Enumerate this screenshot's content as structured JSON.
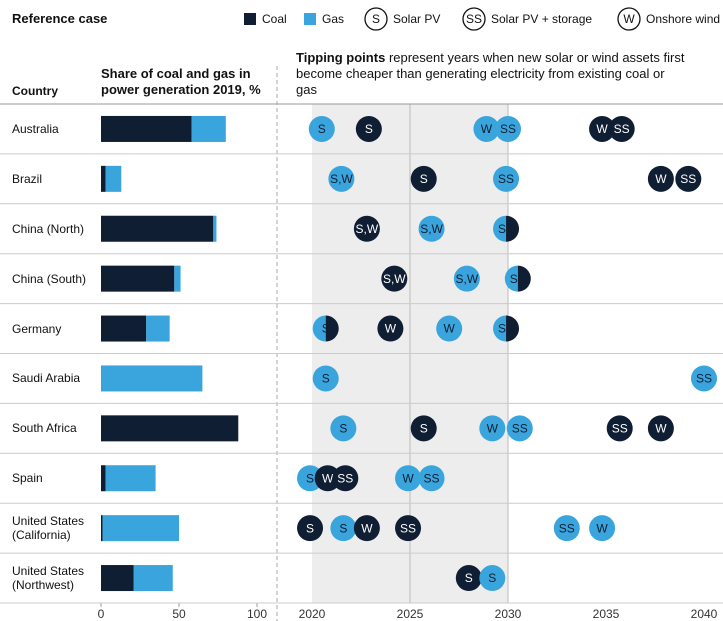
{
  "header": {
    "title": "Reference case",
    "column": "Country"
  },
  "legend": {
    "symbols": [
      {
        "symbol": "S",
        "label": "Solar PV"
      },
      {
        "symbol": "SS",
        "label": "Solar PV + storage"
      },
      {
        "symbol": "W",
        "label": "Onshore wind"
      }
    ]
  },
  "chart_data": [
    {
      "type": "bar",
      "stacked": true,
      "orientation": "horizontal",
      "title": "Share of coal and gas in power generation 2019, %",
      "categories": [
        "Australia",
        "Brazil",
        "China (North)",
        "China (South)",
        "Germany",
        "Saudi Arabia",
        "South Africa",
        "Spain",
        "United States (California)",
        "United States (Northwest)"
      ],
      "series": [
        {
          "name": "Coal",
          "color": "#0f1e33",
          "values": [
            58,
            3,
            72,
            47,
            29,
            0,
            88,
            3,
            1,
            21
          ]
        },
        {
          "name": "Gas",
          "color": "#3aa4dc",
          "values": [
            22,
            10,
            2,
            4,
            15,
            65,
            0,
            32,
            49,
            25
          ]
        }
      ],
      "xlim": [
        0,
        100
      ],
      "xticks": [
        0,
        50,
        100
      ]
    },
    {
      "type": "dot",
      "title_bold": "Tipping points",
      "title": "represent years when new solar or wind assets first become cheaper than generating electricity from existing coal or gas",
      "xlim": [
        2020,
        2040
      ],
      "xticks": [
        2020,
        2025,
        2030,
        2035,
        2040
      ],
      "shaded_range": [
        2020,
        2030
      ],
      "points": [
        [
          {
            "x": 2020.5,
            "label": "S",
            "fuel": "Gas"
          },
          {
            "x": 2022.9,
            "label": "S",
            "fuel": "Coal"
          },
          {
            "x": 2028.9,
            "label": "W",
            "fuel": "Gas"
          },
          {
            "x": 2030.0,
            "label": "SS",
            "fuel": "Gas"
          },
          {
            "x": 2034.8,
            "label": "W",
            "fuel": "Coal"
          },
          {
            "x": 2035.8,
            "label": "SS",
            "fuel": "Coal"
          }
        ],
        [
          {
            "x": 2021.5,
            "label": "S,W",
            "fuel": "Gas"
          },
          {
            "x": 2025.7,
            "label": "S",
            "fuel": "Coal"
          },
          {
            "x": 2029.9,
            "label": "SS",
            "fuel": "Gas"
          },
          {
            "x": 2037.8,
            "label": "W",
            "fuel": "Coal"
          },
          {
            "x": 2039.2,
            "label": "SS",
            "fuel": "Coal"
          }
        ],
        [
          {
            "x": 2022.8,
            "label": "S,W",
            "fuel": "Coal"
          },
          {
            "x": 2026.1,
            "label": "S,W",
            "fuel": "Gas"
          },
          {
            "x": 2029.9,
            "label": "SS",
            "fuel": [
              "Gas",
              "Coal"
            ]
          }
        ],
        [
          {
            "x": 2024.2,
            "label": "S,W",
            "fuel": "Coal"
          },
          {
            "x": 2027.9,
            "label": "S,W",
            "fuel": "Gas"
          },
          {
            "x": 2030.5,
            "label": "SS",
            "fuel": [
              "Gas",
              "Coal"
            ]
          }
        ],
        [
          {
            "x": 2020.7,
            "label": "S",
            "fuel": [
              "Gas",
              "Coal"
            ]
          },
          {
            "x": 2024.0,
            "label": "W",
            "fuel": "Coal"
          },
          {
            "x": 2027.0,
            "label": "W",
            "fuel": "Gas"
          },
          {
            "x": 2029.9,
            "label": "SS",
            "fuel": [
              "Gas",
              "Coal"
            ]
          }
        ],
        [
          {
            "x": 2020.7,
            "label": "S",
            "fuel": "Gas"
          },
          {
            "x": 2040.0,
            "label": "SS",
            "fuel": "Gas"
          }
        ],
        [
          {
            "x": 2021.6,
            "label": "S",
            "fuel": "Gas"
          },
          {
            "x": 2025.7,
            "label": "S",
            "fuel": "Coal"
          },
          {
            "x": 2029.2,
            "label": "W",
            "fuel": "Gas"
          },
          {
            "x": 2030.6,
            "label": "SS",
            "fuel": "Gas"
          },
          {
            "x": 2035.7,
            "label": "SS",
            "fuel": "Coal"
          },
          {
            "x": 2037.8,
            "label": "W",
            "fuel": "Coal"
          }
        ],
        [
          {
            "x": 2019.9,
            "label": "S",
            "fuel": "Gas"
          },
          {
            "x": 2020.8,
            "label": "W",
            "fuel": "Coal"
          },
          {
            "x": 2021.7,
            "label": "SS",
            "fuel": "Coal"
          },
          {
            "x": 2024.9,
            "label": "W",
            "fuel": "Gas"
          },
          {
            "x": 2026.1,
            "label": "SS",
            "fuel": "Gas"
          }
        ],
        [
          {
            "x": 2019.9,
            "label": "S",
            "fuel": "Coal"
          },
          {
            "x": 2021.6,
            "label": "S",
            "fuel": "Gas"
          },
          {
            "x": 2022.8,
            "label": "W",
            "fuel": "Coal"
          },
          {
            "x": 2024.9,
            "label": "SS",
            "fuel": "Coal"
          },
          {
            "x": 2033.0,
            "label": "SS",
            "fuel": "Gas"
          },
          {
            "x": 2034.8,
            "label": "W",
            "fuel": "Gas"
          }
        ],
        [
          {
            "x": 2028.0,
            "label": "S",
            "fuel": "Coal"
          },
          {
            "x": 2029.2,
            "label": "S",
            "fuel": "Gas"
          }
        ]
      ]
    }
  ]
}
